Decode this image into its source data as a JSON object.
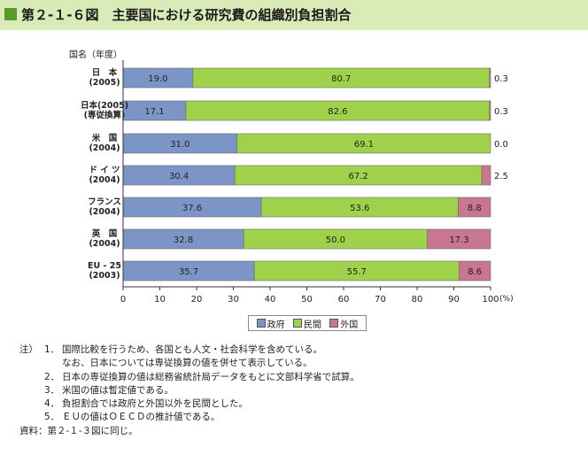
{
  "title": {
    "label": "第２-１-６図　主要国における研究費の組織別負担割合"
  },
  "chart_data": {
    "type": "bar",
    "orientation": "horizontal",
    "stacked": true,
    "category_header": "国名（年度）",
    "categories": [
      [
        "日　本",
        "(2005)"
      ],
      [
        "日本(2005)",
        "(専従換算)"
      ],
      [
        "米　国",
        "(2004)"
      ],
      [
        "ド イ ツ",
        "(2004)"
      ],
      [
        "フランス",
        "(2004)"
      ],
      [
        "英　国",
        "(2004)"
      ],
      [
        "EU - 25",
        "(2003)"
      ]
    ],
    "series": [
      {
        "name": "政府",
        "color": "#7b96c6",
        "values": [
          19.0,
          17.1,
          31.0,
          30.4,
          37.6,
          32.8,
          35.7
        ],
        "labels": [
          "19.0",
          "17.1",
          "31.0",
          "30.4",
          "37.6",
          "32.8",
          "35.7"
        ]
      },
      {
        "name": "民間",
        "color": "#9fd14a",
        "values": [
          80.7,
          82.6,
          69.1,
          67.2,
          53.6,
          50.0,
          55.7
        ],
        "labels": [
          "80.7",
          "82.6",
          "69.1",
          "67.2",
          "53.6",
          "50.0",
          "55.7"
        ]
      },
      {
        "name": "外国",
        "color": "#c97690",
        "values": [
          0.3,
          0.3,
          0.0,
          2.5,
          8.8,
          17.3,
          8.6
        ],
        "labels": [
          "0.3",
          "0.3",
          "0.0",
          "2.5",
          "8.8",
          "17.3",
          "8.6"
        ]
      }
    ],
    "xlim": [
      0,
      100
    ],
    "xticks": [
      "0",
      "10",
      "20",
      "30",
      "40",
      "50",
      "60",
      "70",
      "80",
      "90",
      "100"
    ],
    "xunit": "(%)",
    "legend_position": "bottom-center",
    "grid": false
  },
  "notes": {
    "lead": "注）",
    "items": [
      {
        "num": "1．",
        "text": "国際比較を行うため、各国とも人文・社会科学を含めている。"
      },
      {
        "num": "",
        "text": "なお、日本については専従換算の値を併せて表示している。"
      },
      {
        "num": "2．",
        "text": "日本の専従換算の値は総務省統計局データをもとに文部科学省で試算。"
      },
      {
        "num": "3．",
        "text": "米国の値は暫定値である。"
      },
      {
        "num": "4．",
        "text": "負担割合では政府と外国以外を民間とした。"
      },
      {
        "num": "5．",
        "text": "ＥＵの値はＯＥＣＤの推計値である。"
      }
    ],
    "source": "資料：第２-１-３図に同じ。"
  }
}
